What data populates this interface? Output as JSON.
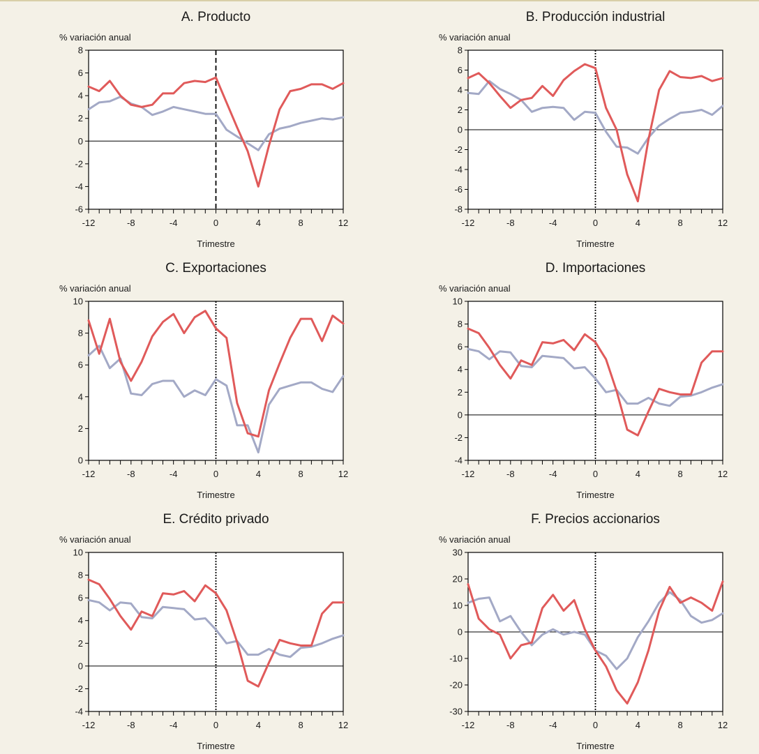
{
  "colors": {
    "red": "#e05a5a",
    "gray": "#a3a9c6",
    "zero": "#000000",
    "frame": "#000000"
  },
  "chart_data": [
    {
      "type": "line",
      "title": "A. Producto",
      "ylabel": "% variación anual",
      "xlabel": "Trimestre",
      "xlim": [
        -12,
        12
      ],
      "ylim": [
        -6,
        8
      ],
      "yticks": [
        -6,
        -4,
        -2,
        0,
        2,
        4,
        6,
        8
      ],
      "xticks": [
        -12,
        -8,
        -4,
        0,
        4,
        8,
        12
      ],
      "vline": {
        "x": 0,
        "style": "dashed"
      },
      "x": [
        -12,
        -11,
        -10,
        -9,
        -8,
        -7,
        -6,
        -5,
        -4,
        -3,
        -2,
        -1,
        0,
        1,
        2,
        3,
        4,
        5,
        6,
        7,
        8,
        9,
        10,
        11,
        12
      ],
      "series": [
        {
          "color": "red",
          "values": [
            4.8,
            4.4,
            5.3,
            4.0,
            3.2,
            3.0,
            3.2,
            4.2,
            4.2,
            5.1,
            5.3,
            5.2,
            5.6,
            3.4,
            1.2,
            -0.9,
            -4.0,
            -0.4,
            2.8,
            4.4,
            4.6,
            5.0,
            5.0,
            4.6,
            5.1
          ]
        },
        {
          "color": "gray",
          "values": [
            2.8,
            3.4,
            3.5,
            3.9,
            3.3,
            3.0,
            2.3,
            2.6,
            3.0,
            2.8,
            2.6,
            2.4,
            2.4,
            1.0,
            0.4,
            -0.2,
            -0.8,
            0.6,
            1.1,
            1.3,
            1.6,
            1.8,
            2.0,
            1.9,
            2.1
          ]
        }
      ]
    },
    {
      "type": "line",
      "title": "B. Producción industrial",
      "ylabel": "% variación anual",
      "xlabel": "Trimestre",
      "xlim": [
        -12,
        12
      ],
      "ylim": [
        -8,
        8
      ],
      "yticks": [
        -8,
        -6,
        -4,
        -2,
        0,
        2,
        4,
        6,
        8
      ],
      "xticks": [
        -12,
        -8,
        -4,
        0,
        4,
        8,
        12
      ],
      "vline": {
        "x": 0,
        "style": "dotted"
      },
      "x": [
        -12,
        -11,
        -10,
        -9,
        -8,
        -7,
        -6,
        -5,
        -4,
        -3,
        -2,
        -1,
        0,
        1,
        2,
        3,
        4,
        5,
        6,
        7,
        8,
        9,
        10,
        11,
        12
      ],
      "series": [
        {
          "color": "red",
          "values": [
            5.2,
            5.7,
            4.7,
            3.4,
            2.2,
            3.0,
            3.2,
            4.4,
            3.4,
            5.0,
            5.9,
            6.6,
            6.2,
            2.2,
            0.0,
            -4.5,
            -7.2,
            -1.0,
            4.0,
            5.9,
            5.3,
            5.2,
            5.4,
            4.9,
            5.2
          ]
        },
        {
          "color": "gray",
          "values": [
            3.7,
            3.6,
            4.9,
            4.1,
            3.6,
            3.0,
            1.8,
            2.2,
            2.3,
            2.2,
            1.0,
            1.8,
            1.7,
            -0.2,
            -1.7,
            -1.8,
            -2.4,
            -0.8,
            0.4,
            1.1,
            1.7,
            1.8,
            2.0,
            1.5,
            2.4
          ]
        }
      ]
    },
    {
      "type": "line",
      "title": "C. Exportaciones",
      "ylabel": "% variación anual",
      "xlabel": "Trimestre",
      "xlim": [
        -12,
        12
      ],
      "ylim": [
        0,
        10
      ],
      "yticks": [
        0,
        2,
        4,
        6,
        8,
        10
      ],
      "xticks": [
        -12,
        -8,
        -4,
        0,
        4,
        8,
        12
      ],
      "vline": {
        "x": 0,
        "style": "dotted"
      },
      "x": [
        -12,
        -11,
        -10,
        -9,
        -8,
        -7,
        -6,
        -5,
        -4,
        -3,
        -2,
        -1,
        0,
        1,
        2,
        3,
        4,
        5,
        6,
        7,
        8,
        9,
        10,
        11,
        12
      ],
      "series": [
        {
          "color": "red",
          "values": [
            8.8,
            6.7,
            8.9,
            6.2,
            5.0,
            6.2,
            7.8,
            8.7,
            9.2,
            8.0,
            9.0,
            9.4,
            8.3,
            7.7,
            3.6,
            1.7,
            1.5,
            4.4,
            6.1,
            7.7,
            8.9,
            8.9,
            7.5,
            9.1,
            8.6
          ]
        },
        {
          "color": "gray",
          "values": [
            6.6,
            7.2,
            5.8,
            6.4,
            4.2,
            4.1,
            4.8,
            5.0,
            5.0,
            4.0,
            4.4,
            4.1,
            5.1,
            4.7,
            2.2,
            2.2,
            0.5,
            3.5,
            4.5,
            4.7,
            4.9,
            4.9,
            4.5,
            4.3,
            5.3
          ]
        }
      ]
    },
    {
      "type": "line",
      "title": "D. Importaciones",
      "ylabel": "% variación anual",
      "xlabel": "Trimestre",
      "xlim": [
        -12,
        12
      ],
      "ylim": [
        -4,
        10
      ],
      "yticks": [
        -4,
        -2,
        0,
        2,
        4,
        6,
        8,
        10
      ],
      "xticks": [
        -12,
        -8,
        -4,
        0,
        4,
        8,
        12
      ],
      "vline": {
        "x": 0,
        "style": "dotted"
      },
      "x": [
        -12,
        -11,
        -10,
        -9,
        -8,
        -7,
        -6,
        -5,
        -4,
        -3,
        -2,
        -1,
        0,
        1,
        2,
        3,
        4,
        5,
        6,
        7,
        8,
        9,
        10,
        11,
        12
      ],
      "series": [
        {
          "color": "red",
          "values": [
            7.6,
            7.2,
            5.9,
            4.4,
            3.2,
            4.8,
            4.4,
            6.4,
            6.3,
            6.6,
            5.7,
            7.1,
            6.4,
            4.9,
            2.1,
            -1.3,
            -1.8,
            0.3,
            2.3,
            2.0,
            1.8,
            1.8,
            4.6,
            5.6,
            5.6
          ]
        },
        {
          "color": "gray",
          "values": [
            5.8,
            5.6,
            4.9,
            5.6,
            5.5,
            4.3,
            4.2,
            5.2,
            5.1,
            5.0,
            4.1,
            4.2,
            3.2,
            2.0,
            2.2,
            1.0,
            1.0,
            1.5,
            1.0,
            0.8,
            1.6,
            1.7,
            2.0,
            2.4,
            2.7
          ]
        }
      ]
    },
    {
      "type": "line",
      "title": "E. Crédito privado",
      "ylabel": "% variación anual",
      "xlabel": "Trimestre",
      "xlim": [
        -12,
        12
      ],
      "ylim": [
        -4,
        10
      ],
      "yticks": [
        -4,
        -2,
        0,
        2,
        4,
        6,
        8,
        10
      ],
      "xticks": [
        -12,
        -8,
        -4,
        0,
        4,
        8,
        12
      ],
      "vline": {
        "x": 0,
        "style": "dotted"
      },
      "x": [
        -12,
        -11,
        -10,
        -9,
        -8,
        -7,
        -6,
        -5,
        -4,
        -3,
        -2,
        -1,
        0,
        1,
        2,
        3,
        4,
        5,
        6,
        7,
        8,
        9,
        10,
        11,
        12
      ],
      "series": [
        {
          "color": "red",
          "values": [
            7.6,
            7.2,
            5.9,
            4.4,
            3.2,
            4.8,
            4.4,
            6.4,
            6.3,
            6.6,
            5.7,
            7.1,
            6.4,
            4.9,
            2.1,
            -1.3,
            -1.8,
            0.3,
            2.3,
            2.0,
            1.8,
            1.8,
            4.6,
            5.6,
            5.6
          ]
        },
        {
          "color": "gray",
          "values": [
            5.8,
            5.6,
            4.9,
            5.6,
            5.5,
            4.3,
            4.2,
            5.2,
            5.1,
            5.0,
            4.1,
            4.2,
            3.2,
            2.0,
            2.2,
            1.0,
            1.0,
            1.5,
            1.0,
            0.8,
            1.6,
            1.7,
            2.0,
            2.4,
            2.7
          ]
        }
      ]
    },
    {
      "type": "line",
      "title": "F. Precios accionarios",
      "ylabel": "% variación anual",
      "xlabel": "Trimestre",
      "xlim": [
        -12,
        12
      ],
      "ylim": [
        -30,
        30
      ],
      "yticks": [
        -30,
        -20,
        -10,
        0,
        10,
        20,
        30
      ],
      "xticks": [
        -12,
        -8,
        -4,
        0,
        4,
        8,
        12
      ],
      "vline": {
        "x": 0,
        "style": "dotted"
      },
      "x": [
        -12,
        -11,
        -10,
        -9,
        -8,
        -7,
        -6,
        -5,
        -4,
        -3,
        -2,
        -1,
        0,
        1,
        2,
        3,
        4,
        5,
        6,
        7,
        8,
        9,
        10,
        11,
        12
      ],
      "series": [
        {
          "color": "red",
          "values": [
            18,
            5,
            1,
            -1,
            -10,
            -5,
            -4,
            9,
            14,
            8,
            12,
            1,
            -7,
            -13,
            -22,
            -27,
            -19,
            -7,
            8,
            17,
            11,
            13,
            11,
            8,
            19
          ]
        },
        {
          "color": "gray",
          "values": [
            11,
            12.5,
            13,
            4,
            6,
            0,
            -5,
            -1,
            1,
            -1,
            0,
            -1,
            -7,
            -9,
            -14,
            -10,
            -2,
            4,
            11,
            15,
            12,
            6,
            3.5,
            4.5,
            7
          ]
        }
      ]
    }
  ]
}
